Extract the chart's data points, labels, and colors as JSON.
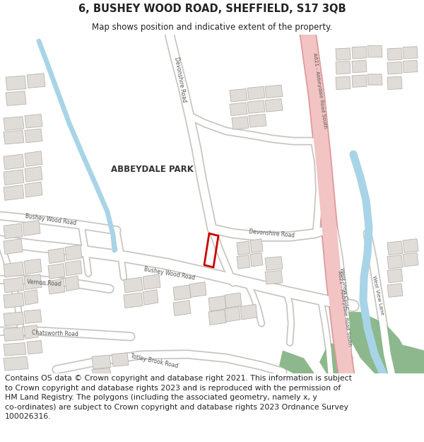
{
  "title": "6, BUSHEY WOOD ROAD, SHEFFIELD, S17 3QB",
  "subtitle": "Map shows position and indicative extent of the property.",
  "footer": "Contains OS data © Crown copyright and database right 2021. This information is subject\nto Crown copyright and database rights 2023 and is reproduced with the permission of\nHM Land Registry. The polygons (including the associated geometry, namely x, y\nco-ordinates) are subject to Crown copyright and database rights 2023 Ordnance Survey\n100026316.",
  "map_bg": "#f5f3f0",
  "road_fill": "#ffffff",
  "road_edge": "#c8c5c0",
  "major_road_fill": "#f2c4c4",
  "major_road_edge": "#e09898",
  "building_fill": "#e0ddd8",
  "building_edge": "#b8b5b0",
  "water_color": "#a8d4e8",
  "green_color": "#8db88d",
  "property_outline": "#cc0000",
  "text_dark": "#222222",
  "road_label_color": "#555555"
}
